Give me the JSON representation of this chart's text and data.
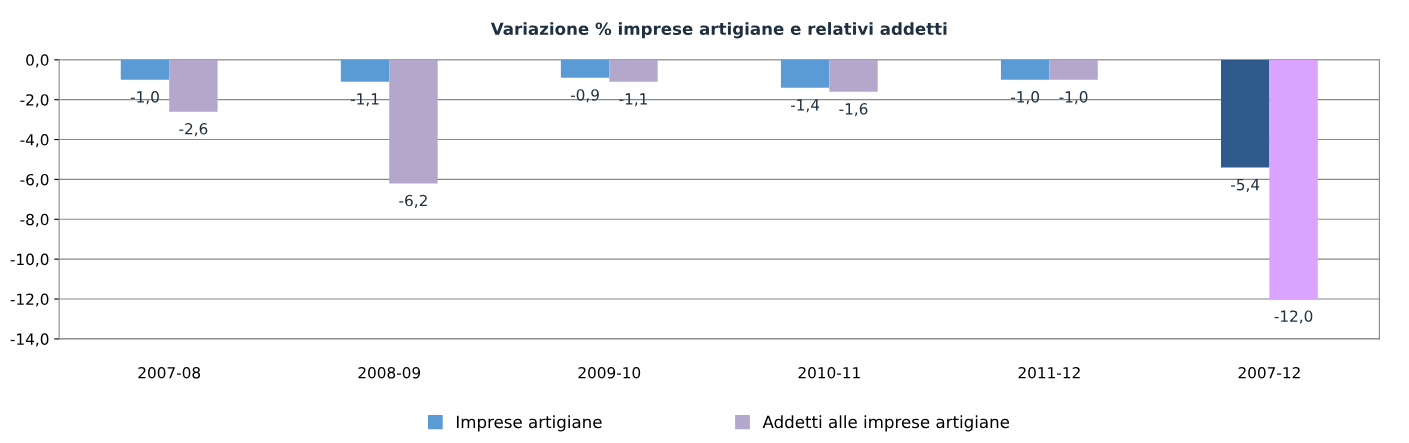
{
  "chart_data": {
    "type": "bar",
    "title": "Variazione % imprese artigiane e relativi addetti",
    "categories": [
      "2007-08",
      "2008-09",
      "2009-10",
      "2010-11",
      "2011-12",
      "2007-12"
    ],
    "series": [
      {
        "name": "Imprese artigiane",
        "color": "#5b9bd5",
        "colors": [
          "#5b9bd5",
          "#5b9bd5",
          "#5b9bd5",
          "#5b9bd5",
          "#5b9bd5",
          "#2f5b8c"
        ],
        "values": [
          -1.0,
          -1.1,
          -0.9,
          -1.4,
          -1.0,
          -5.4
        ],
        "value_labels": [
          "-1,0",
          "-1,1",
          "-0,9",
          "-1,4",
          "-1,0",
          "-5,4"
        ]
      },
      {
        "name": "Addetti alle imprese artigiane",
        "color": "#b4a7cc",
        "colors": [
          "#b4a7cc",
          "#b4a7cc",
          "#b4a7cc",
          "#b4a7cc",
          "#b4a7cc",
          "#d9a3ff"
        ],
        "values": [
          -2.6,
          -6.2,
          -1.1,
          -1.6,
          -1.0,
          -12.0
        ],
        "value_labels": [
          "-2,6",
          "-6,2",
          "-1,1",
          "-1,6",
          "-1,0",
          "-12,0"
        ]
      }
    ],
    "ylim": [
      -14,
      0
    ],
    "yticks": [
      {
        "value": 0,
        "label": "0,0"
      },
      {
        "value": -2,
        "label": "-2,0"
      },
      {
        "value": -4,
        "label": "-4,0"
      },
      {
        "value": -6,
        "label": "-6,0"
      },
      {
        "value": -8,
        "label": "-8,0"
      },
      {
        "value": -10,
        "label": "-10,0"
      },
      {
        "value": -12,
        "label": "-12,0"
      },
      {
        "value": -14,
        "label": "-14,0"
      }
    ],
    "grid": "y",
    "legend": "bottom"
  }
}
